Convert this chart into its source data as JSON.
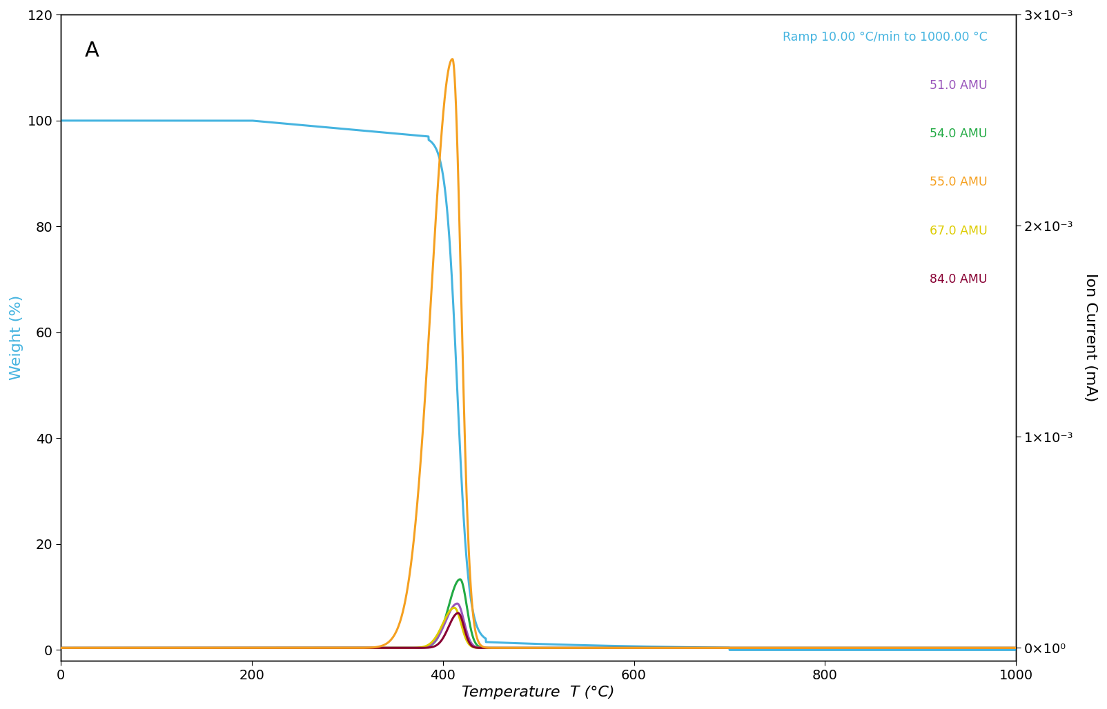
{
  "title_label": "A",
  "xlabel": "Temperature  T (°C)",
  "ylabel_left": "Weight (%)",
  "ylabel_right": "Ion Current (mA)",
  "xlim": [
    0,
    1000
  ],
  "ylim_left": [
    -2,
    120
  ],
  "ylim_right": [
    -6e-05,
    0.003
  ],
  "bg_color": "#ffffff",
  "tga_color": "#45b4e0",
  "amu51_color": "#9955bb",
  "amu54_color": "#22aa44",
  "amu55_color": "#f5a020",
  "amu67_color": "#ddcc00",
  "amu84_color": "#880033",
  "legend_entries": [
    {
      "label": "Ramp 10.00 °C/min to 1000.00 °C",
      "color": "#45b4e0"
    },
    {
      "label": "51.0 AMU",
      "color": "#9955bb"
    },
    {
      "label": "54.0 AMU",
      "color": "#22aa44"
    },
    {
      "label": "55.0 AMU",
      "color": "#f5a020"
    },
    {
      "label": "67.0 AMU",
      "color": "#ddcc00"
    },
    {
      "label": "84.0 AMU",
      "color": "#880033"
    }
  ],
  "yticks_left": [
    0,
    20,
    40,
    60,
    80,
    100,
    120
  ],
  "xticks": [
    0,
    200,
    400,
    600,
    800,
    1000
  ],
  "yticks_right": [
    0,
    0.001,
    0.002,
    0.003
  ],
  "ytick_right_labels": [
    "0×10°",
    "1×10⁻³",
    "2×10⁻³",
    "3×10⁻³"
  ]
}
